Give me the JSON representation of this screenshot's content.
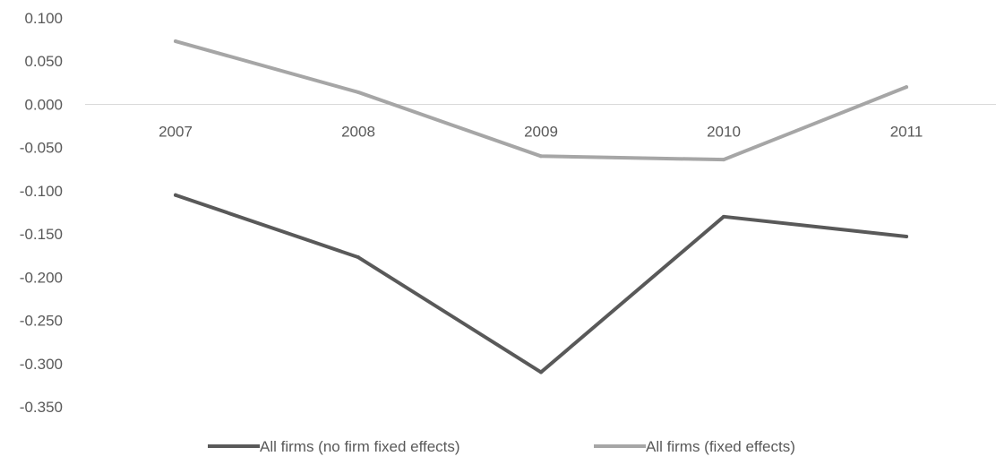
{
  "chart_data": {
    "type": "line",
    "title": "",
    "xlabel": "",
    "ylabel": "",
    "categories": [
      "2007",
      "2008",
      "2009",
      "2010",
      "2011"
    ],
    "y_tick_labels": [
      "0.100",
      "0.050",
      "0.000",
      "-0.050",
      "-0.100",
      "-0.150",
      "-0.200",
      "-0.250",
      "-0.300",
      "-0.350"
    ],
    "ylim": [
      -0.35,
      0.1
    ],
    "grid": false,
    "legend_position": "bottom",
    "series": [
      {
        "name": "All firms (no firm fixed effects)",
        "color": "#595959",
        "values": [
          -0.105,
          -0.177,
          -0.31,
          -0.13,
          -0.153
        ]
      },
      {
        "name": "All firms (fixed effects)",
        "color": "#a6a6a6",
        "values": [
          0.073,
          0.014,
          -0.06,
          -0.064,
          0.02
        ]
      }
    ]
  }
}
